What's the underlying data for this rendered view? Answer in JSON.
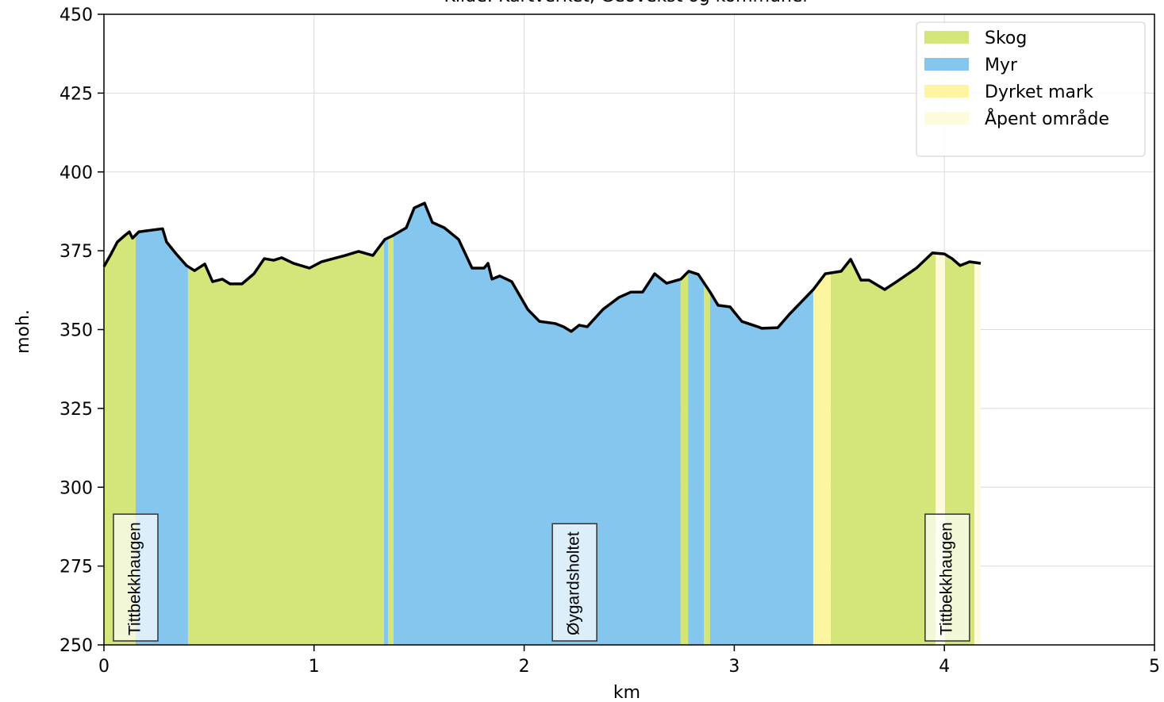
{
  "chart_data": {
    "type": "elevation-profile",
    "subtitle": "Kilde: Kartverket, Geovekst og kommuner",
    "xlabel": "km",
    "ylabel": "moh.",
    "xlim": [
      0,
      5
    ],
    "ylim": [
      250,
      450
    ],
    "xticks": [
      0,
      1,
      2,
      3,
      4,
      5
    ],
    "yticks": [
      250,
      275,
      300,
      325,
      350,
      375,
      400,
      425,
      450
    ],
    "grid": true,
    "legend": "upper right",
    "line_color": "#000000",
    "x": [
      0,
      0.034,
      0.064,
      0.102,
      0.121,
      0.136,
      0.166,
      0.279,
      0.298,
      0.344,
      0.393,
      0.431,
      0.48,
      0.517,
      0.563,
      0.6,
      0.657,
      0.714,
      0.763,
      0.808,
      0.846,
      0.903,
      0.978,
      1.035,
      1.091,
      1.148,
      1.212,
      1.28,
      1.337,
      1.375,
      1.439,
      1.477,
      1.526,
      1.563,
      1.62,
      1.688,
      1.752,
      1.809,
      1.828,
      1.847,
      1.884,
      1.941,
      2.017,
      2.073,
      2.149,
      2.187,
      2.224,
      2.262,
      2.3,
      2.375,
      2.451,
      2.508,
      2.564,
      2.621,
      2.678,
      2.746,
      2.783,
      2.829,
      2.885,
      2.923,
      2.98,
      3.036,
      3.112,
      3.131,
      3.207,
      3.263,
      3.376,
      3.433,
      3.509,
      3.554,
      3.603,
      3.641,
      3.716,
      3.773,
      3.867,
      3.943,
      4.0,
      4.037,
      4.075,
      4.12,
      4.173
    ],
    "values": [
      370,
      374,
      377.8,
      380,
      381,
      379,
      381,
      382,
      377.8,
      374,
      370.3,
      368.7,
      370.8,
      365.2,
      366,
      364.5,
      364.5,
      367.7,
      372.5,
      372,
      372.8,
      371,
      369.5,
      371.5,
      372.5,
      373.5,
      374.8,
      373.5,
      378.6,
      379.8,
      382.3,
      388.6,
      390.1,
      384,
      382.3,
      378.6,
      369.5,
      369.5,
      371,
      366,
      367,
      365.2,
      356.4,
      352.6,
      351.9,
      350.9,
      349.4,
      351.4,
      350.9,
      356.4,
      360.2,
      361.9,
      361.9,
      367.7,
      364.7,
      366,
      368.5,
      367.5,
      361.9,
      357.7,
      357.2,
      352.6,
      350.9,
      350.4,
      350.6,
      354.9,
      362.7,
      367.7,
      368.5,
      372.3,
      365.7,
      365.7,
      362.7,
      365.2,
      369.5,
      374.3,
      374,
      372.5,
      370.3,
      371.5,
      371
    ],
    "series": [
      {
        "name": "Skog",
        "color": "#d4e57a",
        "segments": [
          [
            0,
            0.151
          ],
          [
            0.4,
            1.333
          ],
          [
            1.352,
            1.378
          ],
          [
            2.745,
            2.78
          ],
          [
            2.855,
            2.885
          ],
          [
            3.459,
            3.958
          ],
          [
            4.003,
            4.143
          ]
        ]
      },
      {
        "name": "Myr",
        "color": "#85c6ee",
        "segments": [
          [
            0.151,
            0.4
          ],
          [
            1.333,
            1.352
          ],
          [
            1.378,
            2.745
          ],
          [
            2.78,
            2.855
          ],
          [
            2.885,
            3.376
          ]
        ]
      },
      {
        "name": "Dyrket mark",
        "color": "#fdf5a0",
        "segments": [
          [
            3.376,
            3.459
          ]
        ]
      },
      {
        "name": "Åpent område",
        "color": "#fdfbdc",
        "segments": [
          [
            3.958,
            4.003
          ],
          [
            4.143,
            4.173
          ]
        ]
      }
    ],
    "annotations": [
      {
        "text": "Tittbekkhaugen",
        "x": 0.151
      },
      {
        "text": "Øygardsholtet",
        "x": 2.24
      },
      {
        "text": "Tittbekkhaugen",
        "x": 4.014
      }
    ]
  }
}
